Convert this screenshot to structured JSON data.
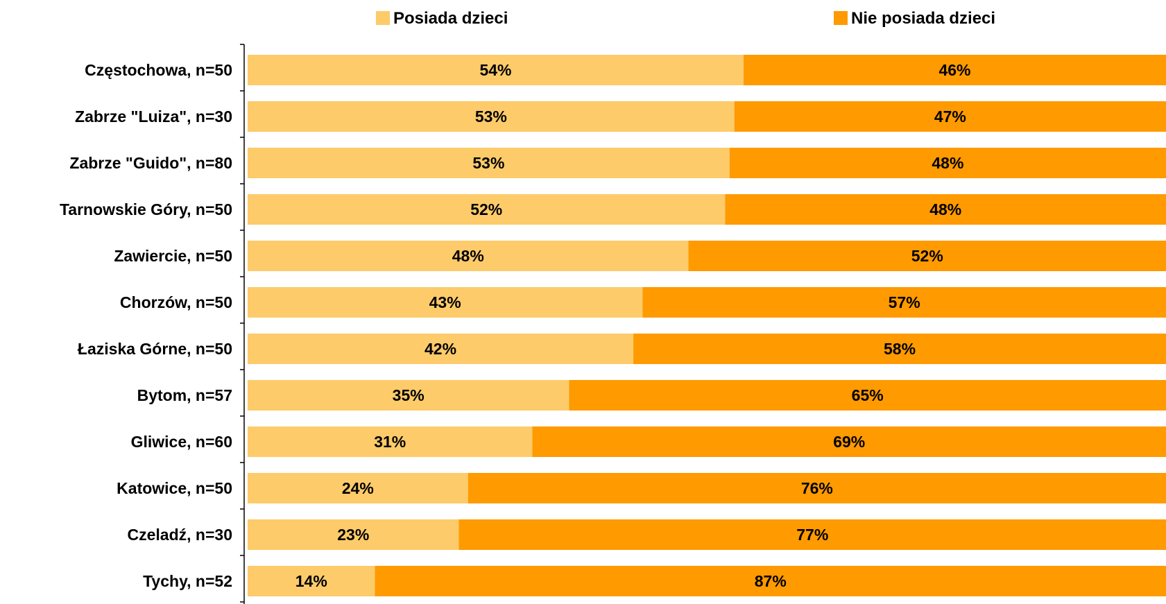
{
  "chart_data": {
    "type": "bar",
    "orientation": "horizontal",
    "stacked": true,
    "percent": true,
    "grid": false,
    "legend_position": "top",
    "categories": [
      "Częstochowa, n=50",
      "Zabrze \"Luiza\", n=30",
      "Zabrze \"Guido\", n=80",
      "Tarnowskie Góry, n=50",
      "Zawiercie, n=50",
      "Chorzów, n=50",
      "Łaziska Górne, n=50",
      "Bytom, n=57",
      "Gliwice, n=60",
      "Katowice, n=50",
      "Czeladź, n=30",
      "Tychy, n=52"
    ],
    "series": [
      {
        "name": "Posiada dzieci",
        "color": "#FDCB6A",
        "values": [
          54,
          53,
          53,
          52,
          48,
          43,
          42,
          35,
          31,
          24,
          23,
          14
        ],
        "labels": [
          "54%",
          "53%",
          "53%",
          "52%",
          "48%",
          "43%",
          "42%",
          "35%",
          "31%",
          "24%",
          "23%",
          "14%"
        ]
      },
      {
        "name": "Nie posiada dzieci",
        "color": "#FF9A00",
        "values": [
          46,
          47,
          48,
          48,
          52,
          57,
          58,
          65,
          69,
          76,
          77,
          87
        ],
        "labels": [
          "46%",
          "47%",
          "48%",
          "48%",
          "52%",
          "57%",
          "58%",
          "65%",
          "69%",
          "76%",
          "77%",
          "87%"
        ]
      }
    ],
    "xlim": [
      0,
      100
    ]
  }
}
